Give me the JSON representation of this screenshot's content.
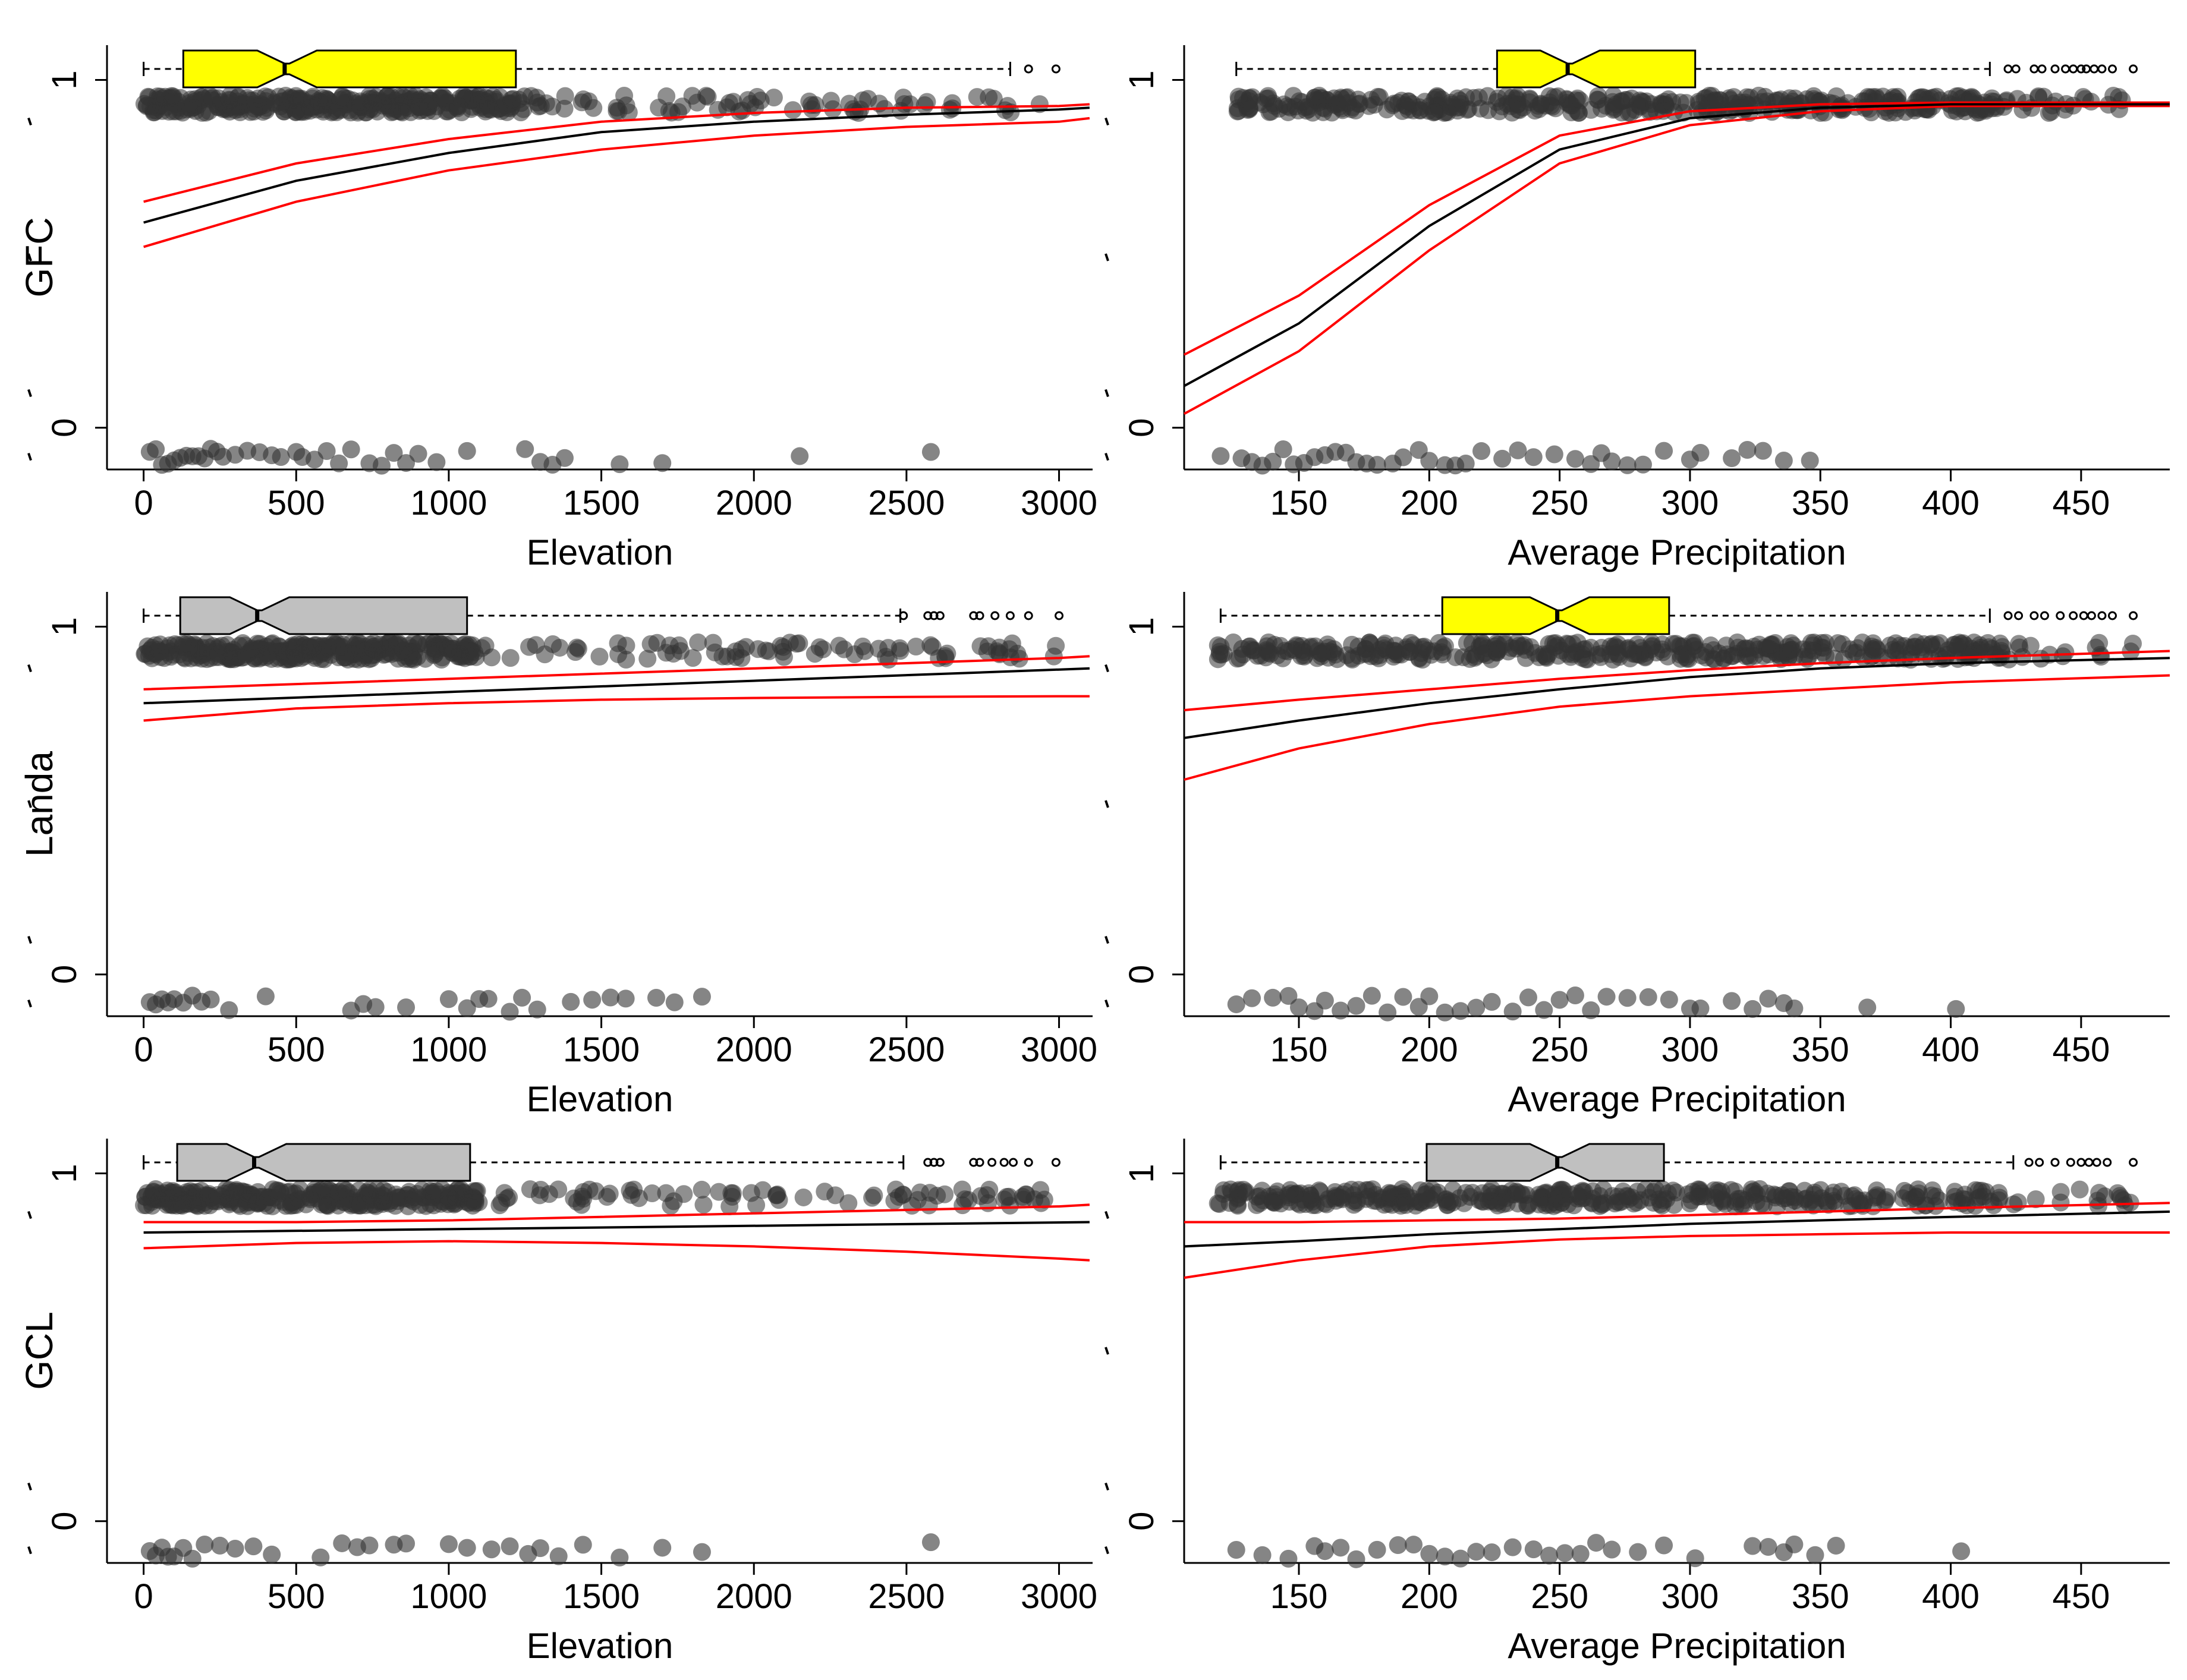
{
  "figure": {
    "rows": [
      {
        "ylabel": "GFC"
      },
      {
        "ylabel": "Landa"
      },
      {
        "ylabel": "GCL"
      }
    ],
    "colors": {
      "fit": "#000000",
      "ci": "#ff0000",
      "points": "#333333",
      "box_significant": "#ffff00",
      "box_nonsignificant": "#c0c0c0",
      "axis": "#000000"
    }
  },
  "chart_data": [
    {
      "type": "scatter",
      "row": 0,
      "col": 0,
      "xlabel": "Elevation",
      "ylabel": "GFC",
      "xlim": [
        -120,
        3110
      ],
      "ylim": [
        -0.12,
        1.1
      ],
      "xticks": [
        0,
        500,
        1000,
        1500,
        2000,
        2500,
        3000
      ],
      "yticks": [
        0,
        1
      ],
      "fit": {
        "x": [
          0,
          500,
          1000,
          1500,
          2000,
          2500,
          3000,
          3100
        ],
        "y": [
          0.59,
          0.71,
          0.79,
          0.85,
          0.88,
          0.9,
          0.915,
          0.92
        ]
      },
      "ci_upper": {
        "x": [
          0,
          500,
          1000,
          1500,
          2000,
          2500,
          3000,
          3100
        ],
        "y": [
          0.65,
          0.76,
          0.83,
          0.88,
          0.905,
          0.92,
          0.925,
          0.93
        ]
      },
      "ci_lower": {
        "x": [
          0,
          500,
          1000,
          1500,
          2000,
          2500,
          3000,
          3100
        ],
        "y": [
          0.52,
          0.65,
          0.74,
          0.8,
          0.84,
          0.865,
          0.88,
          0.89
        ]
      },
      "boxplot": {
        "color": "yellow",
        "whisker_low": 0,
        "q1": 130,
        "median": 470,
        "q3": 1220,
        "whisker_high": 2840,
        "outliers": [
          2900,
          2990
        ]
      },
      "points": {
        "y1_range": [
          0,
          2950
        ],
        "y1_count": 420,
        "y1_dense_max": 1250,
        "y0_x": [
          20,
          40,
          60,
          80,
          100,
          120,
          140,
          160,
          180,
          200,
          220,
          240,
          260,
          300,
          340,
          380,
          420,
          450,
          500,
          520,
          560,
          600,
          640,
          680,
          740,
          780,
          820,
          860,
          900,
          960,
          1060,
          1250,
          1300,
          1340,
          1380,
          1560,
          1700,
          2150,
          2580
        ]
      }
    },
    {
      "type": "scatter",
      "row": 0,
      "col": 1,
      "xlabel": "Average Precipitation",
      "ylabel": "",
      "xlim": [
        106,
        484
      ],
      "ylim": [
        -0.12,
        1.1
      ],
      "xticks": [
        150,
        200,
        250,
        300,
        350,
        400,
        450
      ],
      "yticks": [
        0,
        1
      ],
      "fit": {
        "x": [
          106,
          150,
          200,
          250,
          300,
          350,
          400,
          484
        ],
        "y": [
          0.12,
          0.3,
          0.58,
          0.8,
          0.89,
          0.92,
          0.93,
          0.93
        ]
      },
      "ci_upper": {
        "x": [
          106,
          150,
          200,
          250,
          300,
          350,
          400,
          484
        ],
        "y": [
          0.21,
          0.38,
          0.64,
          0.84,
          0.91,
          0.93,
          0.935,
          0.935
        ]
      },
      "ci_lower": {
        "x": [
          106,
          150,
          200,
          250,
          300,
          350,
          400,
          484
        ],
        "y": [
          0.04,
          0.22,
          0.51,
          0.76,
          0.87,
          0.91,
          0.925,
          0.925
        ]
      },
      "boxplot": {
        "color": "yellow",
        "whisker_low": 126,
        "q1": 226,
        "median": 254,
        "q3": 302,
        "whisker_high": 415,
        "outliers": [
          422,
          425,
          432,
          435,
          440,
          444,
          447,
          450,
          452,
          455,
          458,
          462,
          470
        ]
      },
      "points": {
        "y1_range": [
          126,
          470
        ],
        "y1_count": 420,
        "y1_dense_max": 420,
        "y0_x": [
          120,
          128,
          132,
          136,
          140,
          144,
          148,
          152,
          156,
          160,
          164,
          168,
          172,
          176,
          180,
          186,
          190,
          196,
          200,
          206,
          210,
          214,
          220,
          228,
          234,
          240,
          248,
          256,
          262,
          266,
          270,
          276,
          282,
          290,
          300,
          304,
          316,
          322,
          328,
          336,
          346
        ]
      }
    },
    {
      "type": "scatter",
      "row": 1,
      "col": 0,
      "xlabel": "Elevation",
      "ylabel": "Landa",
      "xlim": [
        -120,
        3110
      ],
      "ylim": [
        -0.12,
        1.1
      ],
      "xticks": [
        0,
        500,
        1000,
        1500,
        2000,
        2500,
        3000
      ],
      "yticks": [
        0,
        1
      ],
      "fit": {
        "x": [
          0,
          3100
        ],
        "y": [
          0.78,
          0.88
        ]
      },
      "ci_upper": {
        "x": [
          0,
          500,
          1000,
          1500,
          2000,
          2500,
          3000,
          3100
        ],
        "y": [
          0.82,
          0.835,
          0.85,
          0.865,
          0.88,
          0.895,
          0.91,
          0.915
        ]
      },
      "ci_lower": {
        "x": [
          0,
          500,
          1000,
          1500,
          2000,
          2500,
          3000,
          3100
        ],
        "y": [
          0.73,
          0.765,
          0.78,
          0.79,
          0.795,
          0.798,
          0.8,
          0.8
        ]
      },
      "boxplot": {
        "color": "gray",
        "whisker_low": 0,
        "q1": 120,
        "median": 380,
        "q3": 1060,
        "whisker_high": 2480,
        "outliers": [
          2490,
          2570,
          2590,
          2610,
          2720,
          2740,
          2790,
          2840,
          2900,
          3000
        ]
      },
      "points": {
        "y1_range": [
          0,
          3000
        ],
        "y1_count": 400,
        "y1_dense_max": 1100,
        "y0_x": [
          20,
          40,
          60,
          80,
          100,
          130,
          160,
          190,
          220,
          280,
          400,
          680,
          720,
          760,
          860,
          1000,
          1060,
          1100,
          1130,
          1200,
          1240,
          1290,
          1400,
          1470,
          1530,
          1580,
          1680,
          1740,
          1830
        ]
      }
    },
    {
      "type": "scatter",
      "row": 1,
      "col": 1,
      "xlabel": "Average Precipitation",
      "ylabel": "",
      "xlim": [
        106,
        484
      ],
      "ylim": [
        -0.12,
        1.1
      ],
      "xticks": [
        150,
        200,
        250,
        300,
        350,
        400,
        450
      ],
      "yticks": [
        0,
        1
      ],
      "fit": {
        "x": [
          106,
          150,
          200,
          250,
          300,
          350,
          400,
          484
        ],
        "y": [
          0.68,
          0.73,
          0.78,
          0.82,
          0.855,
          0.88,
          0.895,
          0.91
        ]
      },
      "ci_upper": {
        "x": [
          106,
          150,
          200,
          250,
          300,
          350,
          400,
          484
        ],
        "y": [
          0.76,
          0.79,
          0.82,
          0.85,
          0.875,
          0.895,
          0.91,
          0.93
        ]
      },
      "ci_lower": {
        "x": [
          106,
          150,
          200,
          250,
          300,
          350,
          400,
          484
        ],
        "y": [
          0.56,
          0.65,
          0.72,
          0.77,
          0.8,
          0.82,
          0.84,
          0.86
        ]
      },
      "boxplot": {
        "color": "yellow",
        "whisker_low": 120,
        "q1": 205,
        "median": 250,
        "q3": 292,
        "whisker_high": 415,
        "outliers": [
          422,
          426,
          432,
          436,
          442,
          447,
          451,
          454,
          458,
          462,
          470
        ]
      },
      "points": {
        "y1_range": [
          118,
          470
        ],
        "y1_count": 400,
        "y1_dense_max": 420,
        "y0_x": [
          126,
          132,
          140,
          146,
          150,
          156,
          160,
          166,
          172,
          178,
          184,
          190,
          196,
          200,
          206,
          212,
          218,
          224,
          232,
          238,
          244,
          250,
          256,
          262,
          268,
          276,
          284,
          292,
          300,
          304,
          316,
          324,
          330,
          336,
          340,
          368,
          402
        ]
      }
    },
    {
      "type": "scatter",
      "row": 2,
      "col": 0,
      "xlabel": "Elevation",
      "ylabel": "GCL",
      "xlim": [
        -120,
        3110
      ],
      "ylim": [
        -0.12,
        1.1
      ],
      "xticks": [
        0,
        500,
        1000,
        1500,
        2000,
        2500,
        3000
      ],
      "yticks": [
        0,
        1
      ],
      "fit": {
        "x": [
          0,
          3100
        ],
        "y": [
          0.83,
          0.86
        ]
      },
      "ci_upper": {
        "x": [
          0,
          500,
          1000,
          1500,
          2000,
          2500,
          3000,
          3100
        ],
        "y": [
          0.86,
          0.86,
          0.865,
          0.875,
          0.885,
          0.895,
          0.905,
          0.91
        ]
      },
      "ci_lower": {
        "x": [
          0,
          500,
          1000,
          1500,
          2000,
          2500,
          3000,
          3100
        ],
        "y": [
          0.785,
          0.8,
          0.805,
          0.8,
          0.79,
          0.775,
          0.755,
          0.75
        ]
      },
      "boxplot": {
        "color": "gray",
        "whisker_low": 0,
        "q1": 110,
        "median": 370,
        "q3": 1070,
        "whisker_high": 2490,
        "outliers": [
          2570,
          2590,
          2610,
          2720,
          2740,
          2780,
          2820,
          2850,
          2900,
          2990
        ]
      },
      "points": {
        "y1_range": [
          0,
          3000
        ],
        "y1_count": 400,
        "y1_dense_max": 1100,
        "y0_x": [
          20,
          40,
          60,
          80,
          100,
          130,
          160,
          200,
          250,
          300,
          360,
          420,
          580,
          650,
          700,
          740,
          820,
          860,
          1000,
          1060,
          1140,
          1200,
          1260,
          1300,
          1360,
          1440,
          1560,
          1700,
          1830,
          2580
        ]
      }
    },
    {
      "type": "scatter",
      "row": 2,
      "col": 1,
      "xlabel": "Average Precipitation",
      "ylabel": "",
      "xlim": [
        106,
        484
      ],
      "ylim": [
        -0.12,
        1.1
      ],
      "xticks": [
        150,
        200,
        250,
        300,
        350,
        400,
        450
      ],
      "yticks": [
        0,
        1
      ],
      "fit": {
        "x": [
          106,
          150,
          200,
          250,
          300,
          350,
          400,
          484
        ],
        "y": [
          0.79,
          0.805,
          0.825,
          0.84,
          0.855,
          0.865,
          0.875,
          0.89
        ]
      },
      "ci_upper": {
        "x": [
          106,
          150,
          200,
          250,
          300,
          350,
          400,
          484
        ],
        "y": [
          0.86,
          0.86,
          0.865,
          0.87,
          0.88,
          0.89,
          0.9,
          0.915
        ]
      },
      "ci_lower": {
        "x": [
          106,
          150,
          200,
          250,
          300,
          350,
          400,
          484
        ],
        "y": [
          0.7,
          0.75,
          0.79,
          0.81,
          0.82,
          0.825,
          0.83,
          0.83
        ]
      },
      "boxplot": {
        "color": "gray",
        "whisker_low": 120,
        "q1": 199,
        "median": 250,
        "q3": 290,
        "whisker_high": 424,
        "outliers": [
          430,
          434,
          440,
          446,
          450,
          453,
          456,
          460,
          470
        ]
      },
      "points": {
        "y1_range": [
          118,
          472
        ],
        "y1_count": 400,
        "y1_dense_max": 420,
        "y0_x": [
          126,
          136,
          146,
          156,
          160,
          166,
          172,
          180,
          188,
          194,
          200,
          206,
          212,
          218,
          224,
          232,
          240,
          246,
          252,
          258,
          264,
          270,
          280,
          290,
          302,
          324,
          330,
          336,
          340,
          348,
          356,
          404
        ]
      }
    }
  ]
}
